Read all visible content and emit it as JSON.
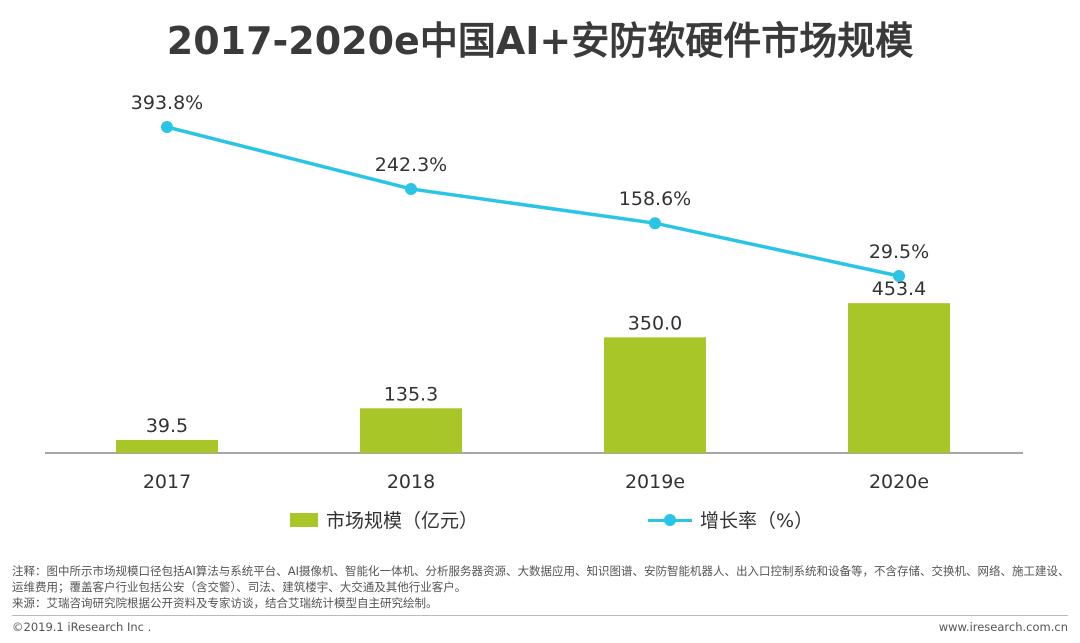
{
  "title": "2017-2020e中国AI+安防软硬件市场规模",
  "colors": {
    "bar": "#a8c628",
    "line": "#29c4e6",
    "axis": "#888888",
    "text": "#333333"
  },
  "chart_data": {
    "type": "bar+line",
    "title": "2017-2020e中国AI+安防软硬件市场规模",
    "categories": [
      "2017",
      "2018",
      "2019e",
      "2020e"
    ],
    "series": [
      {
        "name": "市场规模（亿元）",
        "type": "bar",
        "values": [
          39.5,
          135.3,
          350.0,
          453.4
        ],
        "labels": [
          "39.5",
          "135.3",
          "350.0",
          "453.4"
        ]
      },
      {
        "name": "增长率（%）",
        "type": "line",
        "values": [
          393.8,
          242.3,
          158.6,
          29.5
        ],
        "labels": [
          "393.8%",
          "242.3%",
          "158.6%",
          "29.5%"
        ]
      }
    ],
    "legend_position": "bottom"
  },
  "legend": {
    "bar_label": "市场规模（亿元）",
    "line_label": "增长率（%）"
  },
  "notes": {
    "line1": "注释：图中所示市场规模口径包括AI算法与系统平台、AI摄像机、智能化一体机、分析服务器资源、大数据应用、知识图谱、安防智能机器人、出入口控制系统和设备等，不含存储、交换机、网络、施工建设、运维费用；覆盖客户行业包括公安（含交警）、司法、建筑楼宇、大交通及其他行业客户。",
    "line2": "来源：艾瑞咨询研究院根据公开资料及专家访谈，结合艾瑞统计模型自主研究绘制。"
  },
  "footer": {
    "left": "©2019.1 iResearch Inc .",
    "right": "www.iresearch.com.cn"
  }
}
